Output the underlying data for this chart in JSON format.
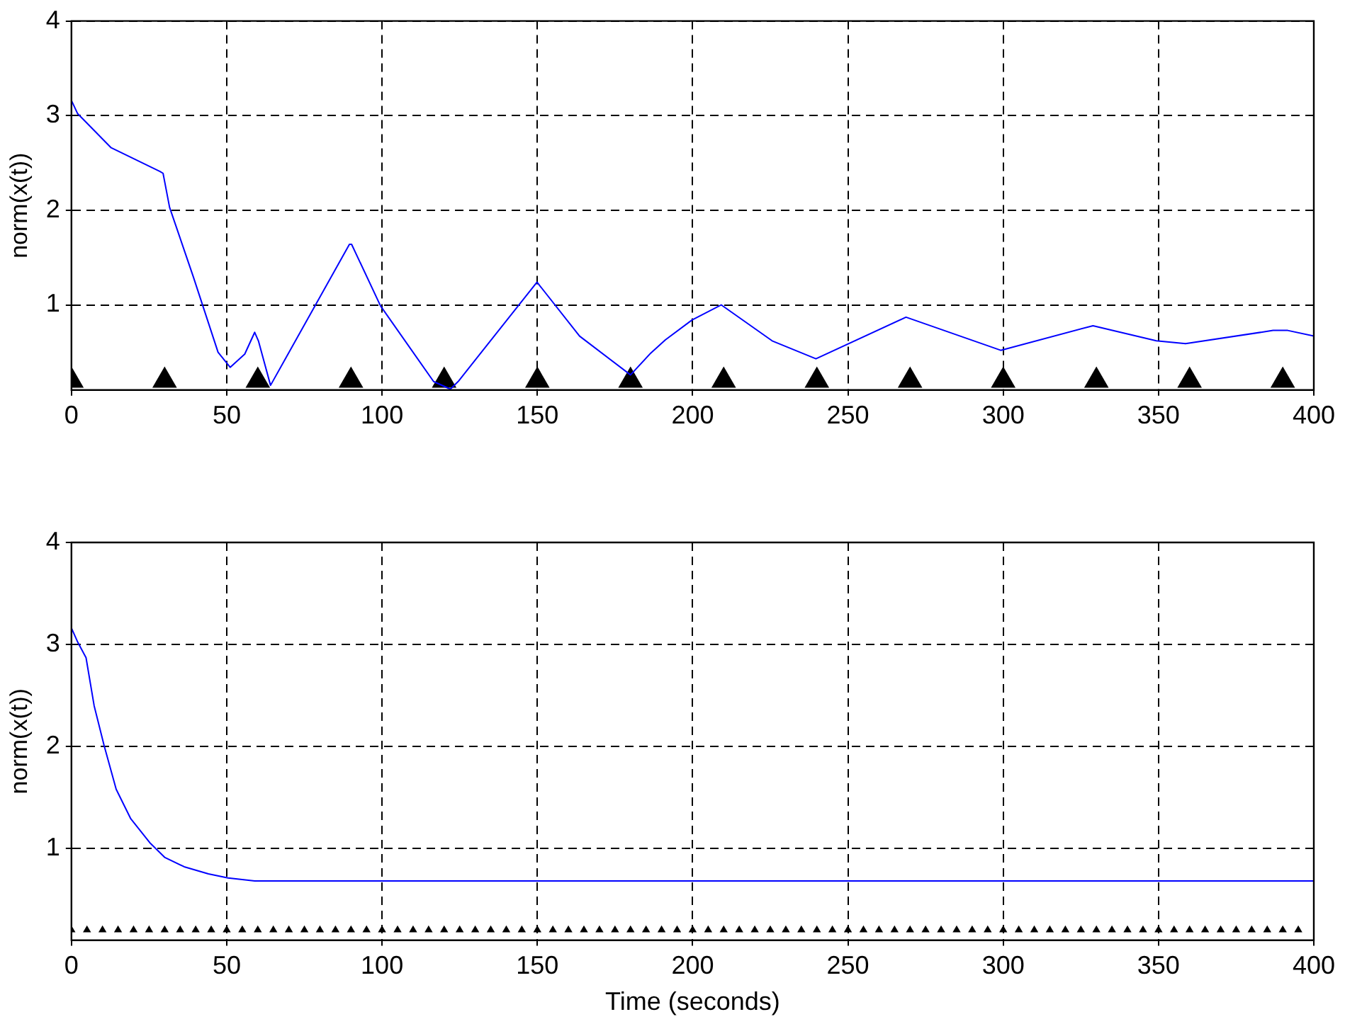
{
  "chart_data": [
    {
      "type": "line",
      "ylabel": "norm(x(t))",
      "xlim": [
        0,
        400
      ],
      "xticks": [
        0,
        50,
        100,
        150,
        200,
        250,
        300,
        350,
        400
      ],
      "ylim": [
        0.1,
        4
      ],
      "yticks": [
        1,
        2,
        3,
        4
      ],
      "grid": true,
      "series": [
        {
          "type": "line",
          "color": "#0000ff",
          "marker": "none",
          "x": [
            0,
            2,
            12.8,
            28.5,
            29.5,
            31.6,
            39.2,
            47.2,
            51.1,
            55.8,
            59,
            60.2,
            64.1,
            89.5,
            90.2,
            99.5,
            116.6,
            122,
            124.5,
            149.9,
            163.6,
            180,
            186.5,
            191.2,
            199.8,
            209.2,
            225.6,
            239.7,
            268.7,
            299.2,
            328.9,
            349.3,
            358.7,
            386.9,
            391.6,
            400
          ],
          "values": [
            3.16,
            3.02,
            2.66,
            2.41,
            2.39,
            2.03,
            1.3,
            0.5,
            0.34,
            0.48,
            0.71,
            0.62,
            0.15,
            1.64,
            1.64,
            0.99,
            0.19,
            0.11,
            0.19,
            1.24,
            0.67,
            0.26,
            0.49,
            0.63,
            0.84,
            1.0,
            0.62,
            0.43,
            0.87,
            0.52,
            0.78,
            0.62,
            0.59,
            0.73,
            0.73,
            0.67
          ]
        },
        {
          "type": "scatter",
          "color": "#000000",
          "marker": "triangle",
          "x": [
            0,
            30,
            60,
            90,
            120,
            150,
            180,
            210,
            240,
            270,
            300,
            330,
            360,
            390
          ],
          "values": [
            0.2,
            0.2,
            0.2,
            0.2,
            0.2,
            0.2,
            0.2,
            0.2,
            0.2,
            0.2,
            0.2,
            0.2,
            0.2,
            0.2
          ]
        }
      ]
    },
    {
      "type": "line",
      "ylabel": "norm(x(t))",
      "xlabel": "Time (seconds)",
      "xlim": [
        0,
        400
      ],
      "xticks": [
        0,
        50,
        100,
        150,
        200,
        250,
        300,
        350,
        400
      ],
      "ylim": [
        0.1,
        4
      ],
      "yticks": [
        1,
        2,
        3,
        4
      ],
      "grid": true,
      "series": [
        {
          "type": "line",
          "color": "#0000ff",
          "marker": "none",
          "x": [
            0,
            1.9,
            4.7,
            7.3,
            10.5,
            14.4,
            19.1,
            25.4,
            30.1,
            36.3,
            44.1,
            50.4,
            59,
            400
          ],
          "values": [
            3.16,
            3.03,
            2.87,
            2.4,
            2.01,
            1.58,
            1.29,
            1.05,
            0.91,
            0.82,
            0.75,
            0.71,
            0.68,
            0.68
          ]
        },
        {
          "type": "scatter",
          "color": "#000000",
          "marker": "triangle",
          "x": [
            0,
            5,
            10,
            15,
            20,
            25,
            30,
            35,
            40,
            45,
            50,
            55,
            60,
            65,
            70,
            75,
            80,
            85,
            90,
            95,
            100,
            105,
            110,
            115,
            120,
            125,
            130,
            135,
            140,
            145,
            150,
            155,
            160,
            165,
            170,
            175,
            180,
            185,
            190,
            195,
            200,
            205,
            210,
            215,
            220,
            225,
            230,
            235,
            240,
            245,
            250,
            255,
            260,
            265,
            270,
            275,
            280,
            285,
            290,
            295,
            300,
            305,
            310,
            315,
            320,
            325,
            330,
            335,
            340,
            345,
            350,
            355,
            360,
            365,
            370,
            375,
            380,
            385,
            390,
            395
          ],
          "values": [
            0.2,
            0.2,
            0.2,
            0.2,
            0.2,
            0.2,
            0.2,
            0.2,
            0.2,
            0.2,
            0.2,
            0.2,
            0.2,
            0.2,
            0.2,
            0.2,
            0.2,
            0.2,
            0.2,
            0.2,
            0.2,
            0.2,
            0.2,
            0.2,
            0.2,
            0.2,
            0.2,
            0.2,
            0.2,
            0.2,
            0.2,
            0.2,
            0.2,
            0.2,
            0.2,
            0.2,
            0.2,
            0.2,
            0.2,
            0.2,
            0.2,
            0.2,
            0.2,
            0.2,
            0.2,
            0.2,
            0.2,
            0.2,
            0.2,
            0.2,
            0.2,
            0.2,
            0.2,
            0.2,
            0.2,
            0.2,
            0.2,
            0.2,
            0.2,
            0.2,
            0.2,
            0.2,
            0.2,
            0.2,
            0.2,
            0.2,
            0.2,
            0.2,
            0.2,
            0.2,
            0.2,
            0.2,
            0.2,
            0.2,
            0.2,
            0.2,
            0.2,
            0.2,
            0.2,
            0.2
          ]
        }
      ]
    }
  ]
}
